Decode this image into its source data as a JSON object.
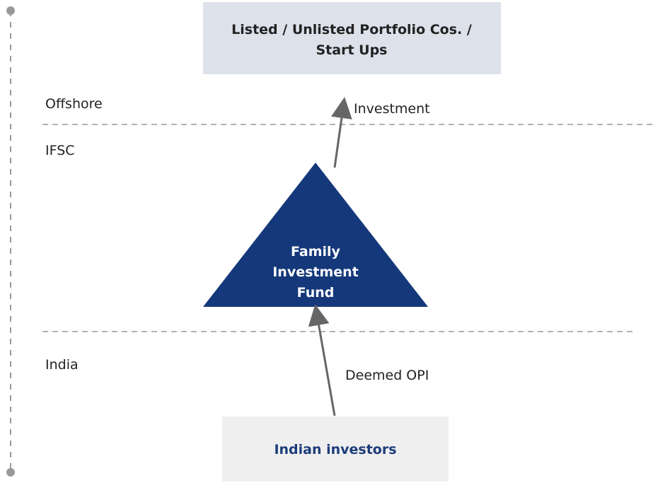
{
  "top_box": {
    "label_lines": [
      "Listed / Unlisted Portfolio Cos. /",
      "Start Ups"
    ]
  },
  "zones": [
    "Offshore",
    "IFSC",
    "India"
  ],
  "fund": {
    "label_lines": [
      "Family",
      "Investment",
      "Fund"
    ]
  },
  "arrows": {
    "up": "Investment",
    "down": "Deemed OPI"
  },
  "bottom_box": {
    "label": "Indian investors"
  }
}
